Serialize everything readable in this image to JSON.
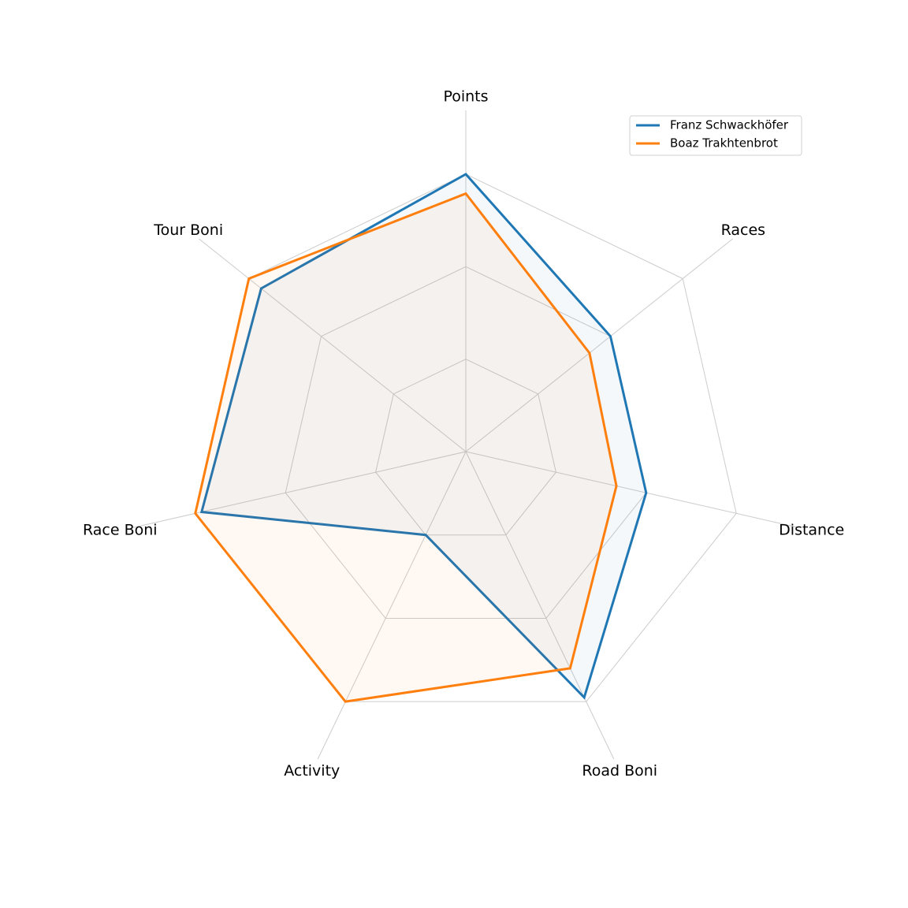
{
  "chart_data": {
    "type": "radar",
    "categories": [
      "Points",
      "Races",
      "Distance",
      "Road Boni",
      "Activity",
      "Race Boni",
      "Tour Boni"
    ],
    "series": [
      {
        "name": "Franz Schwackhöfer",
        "color": "#1f77b4",
        "values": [
          3.0,
          2.0,
          2.0,
          2.95,
          1.0,
          2.93,
          2.83
        ]
      },
      {
        "name": "Boaz Trakhtenbrot",
        "color": "#ff7f0e",
        "values": [
          2.79,
          1.71,
          1.67,
          2.6,
          3.0,
          3.0,
          3.0
        ]
      }
    ],
    "rlim": [
      0,
      3.69
    ],
    "rticks": [
      1,
      2,
      3
    ],
    "grid": true,
    "legend": "upper right"
  }
}
